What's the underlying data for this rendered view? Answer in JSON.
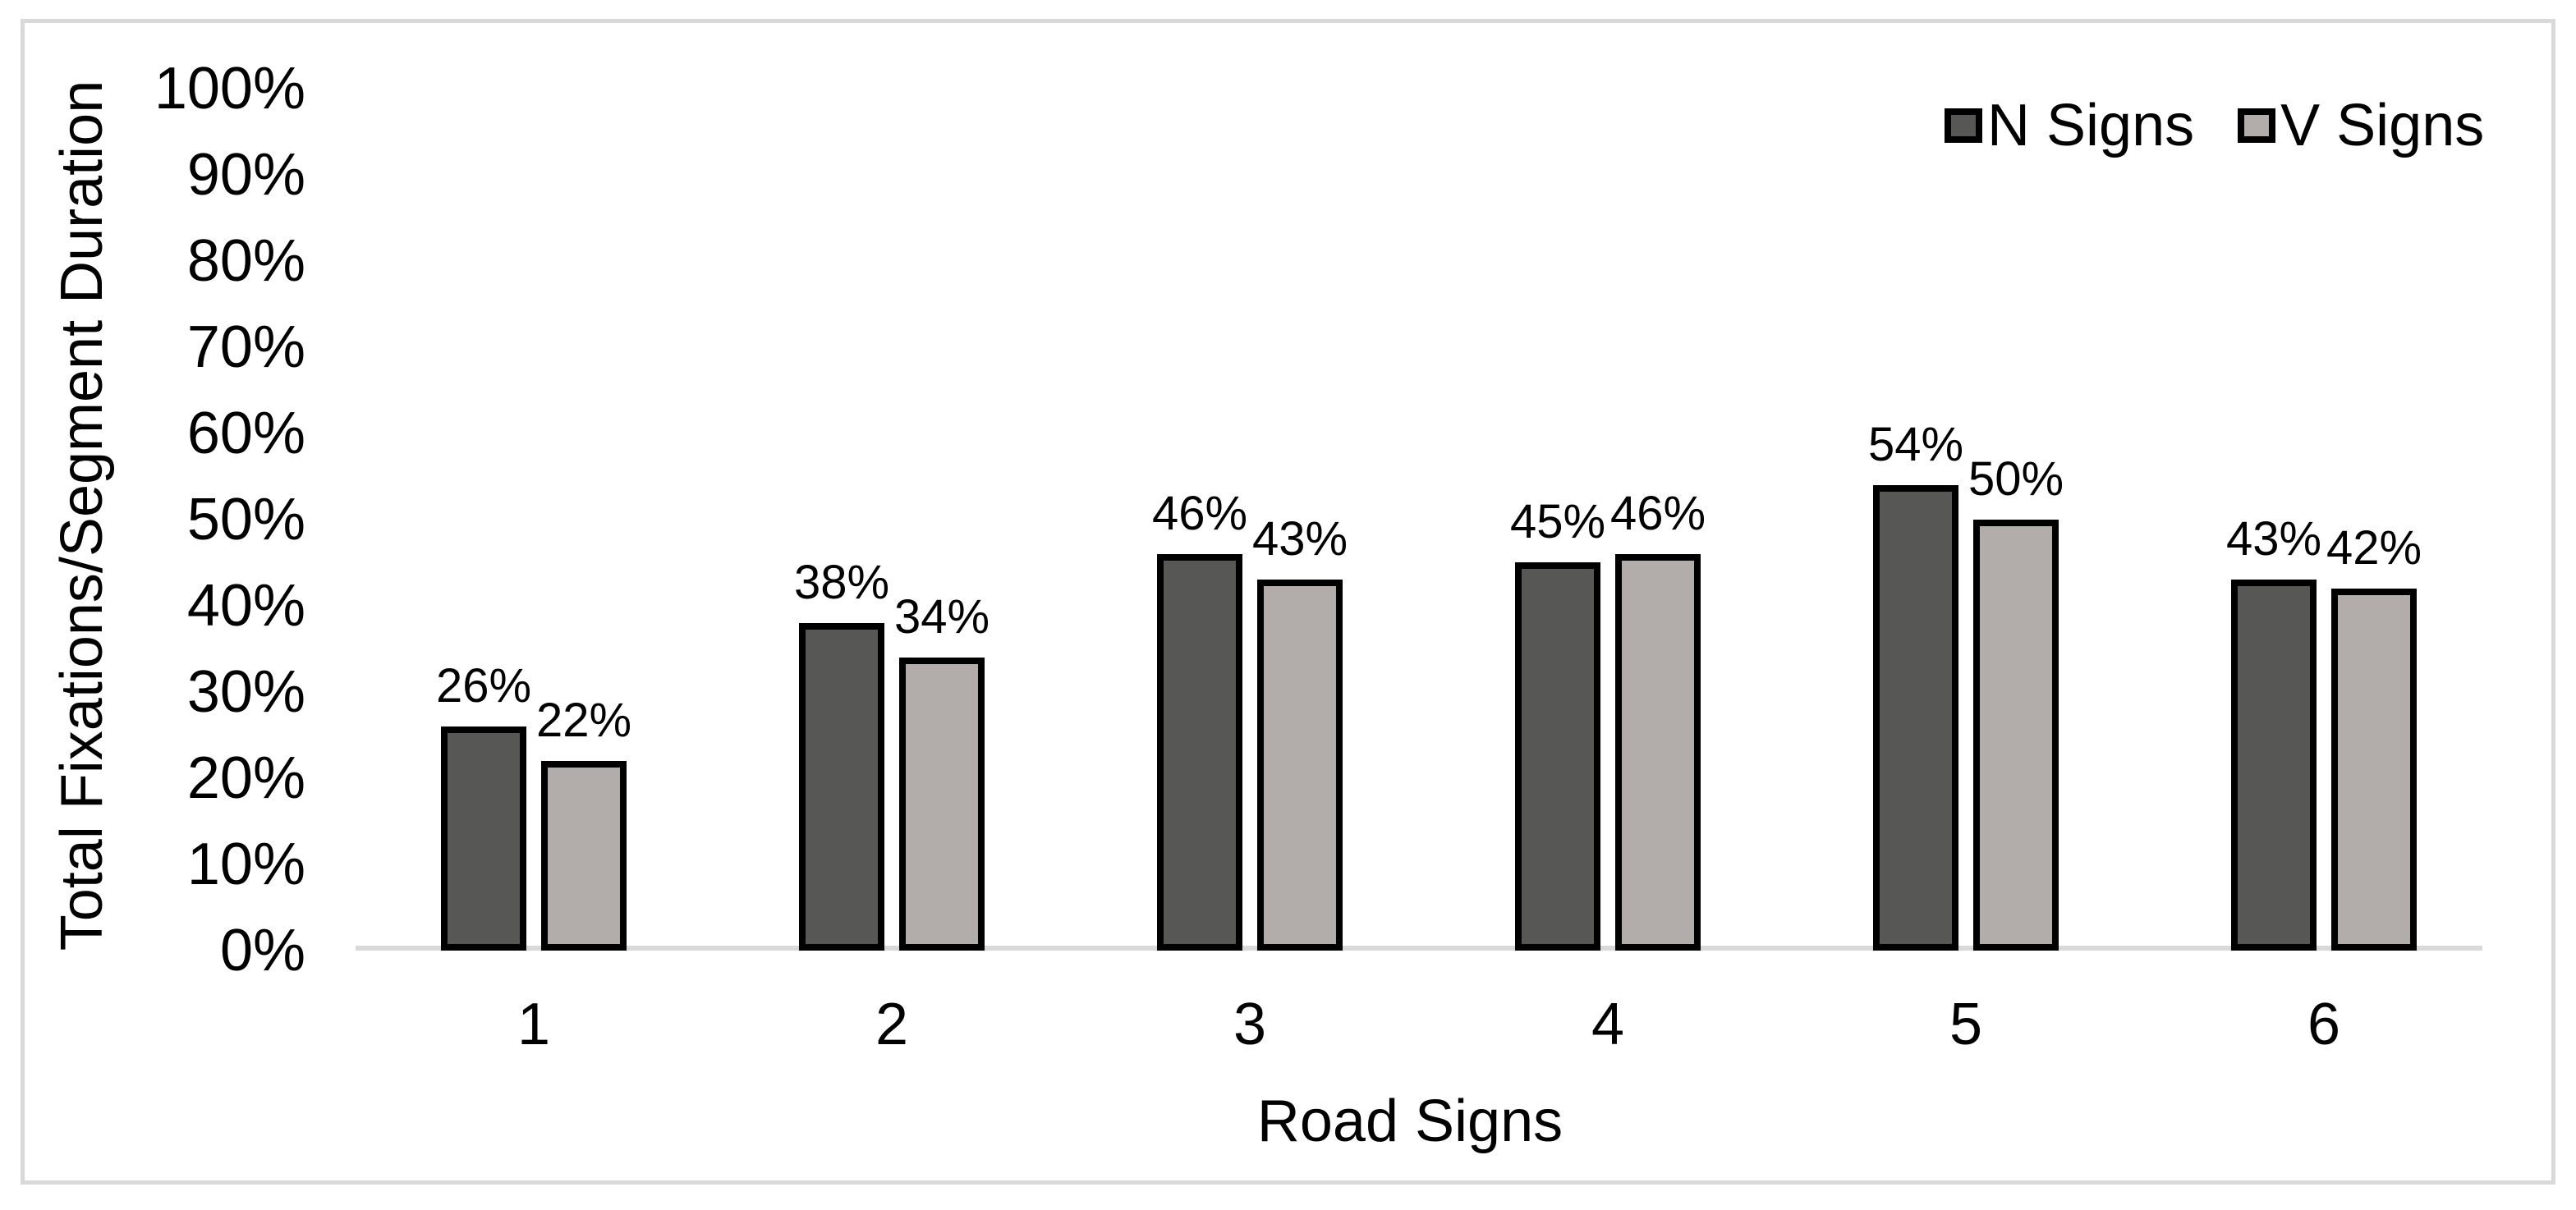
{
  "chart_data": {
    "type": "bar",
    "title": "",
    "categories": [
      "1",
      "2",
      "3",
      "4",
      "5",
      "6"
    ],
    "series": [
      {
        "name": "N Signs",
        "color": "#575756",
        "values": [
          26,
          38,
          46,
          45,
          54,
          43
        ],
        "labels": [
          "26%",
          "38%",
          "46%",
          "45%",
          "54%",
          "43%"
        ]
      },
      {
        "name": "V Signs",
        "color": "#b2adaa",
        "values": [
          22,
          34,
          43,
          46,
          50,
          42
        ],
        "labels": [
          "22%",
          "34%",
          "43%",
          "46%",
          "50%",
          "42%"
        ]
      }
    ],
    "xlabel": "Road Signs",
    "ylabel": "Total Fixations/Segment Duration",
    "ylim": [
      0,
      100
    ],
    "ytick_step": 10,
    "ytick_labels": [
      "0%",
      "10%",
      "20%",
      "30%",
      "40%",
      "50%",
      "60%",
      "70%",
      "80%",
      "90%",
      "100%"
    ],
    "legend_position": "top-right",
    "grid": "off",
    "bar_border_color": "#000000",
    "axis_line_color": "#d9d9d9",
    "canvas_border_color": "#d9d9d9"
  }
}
